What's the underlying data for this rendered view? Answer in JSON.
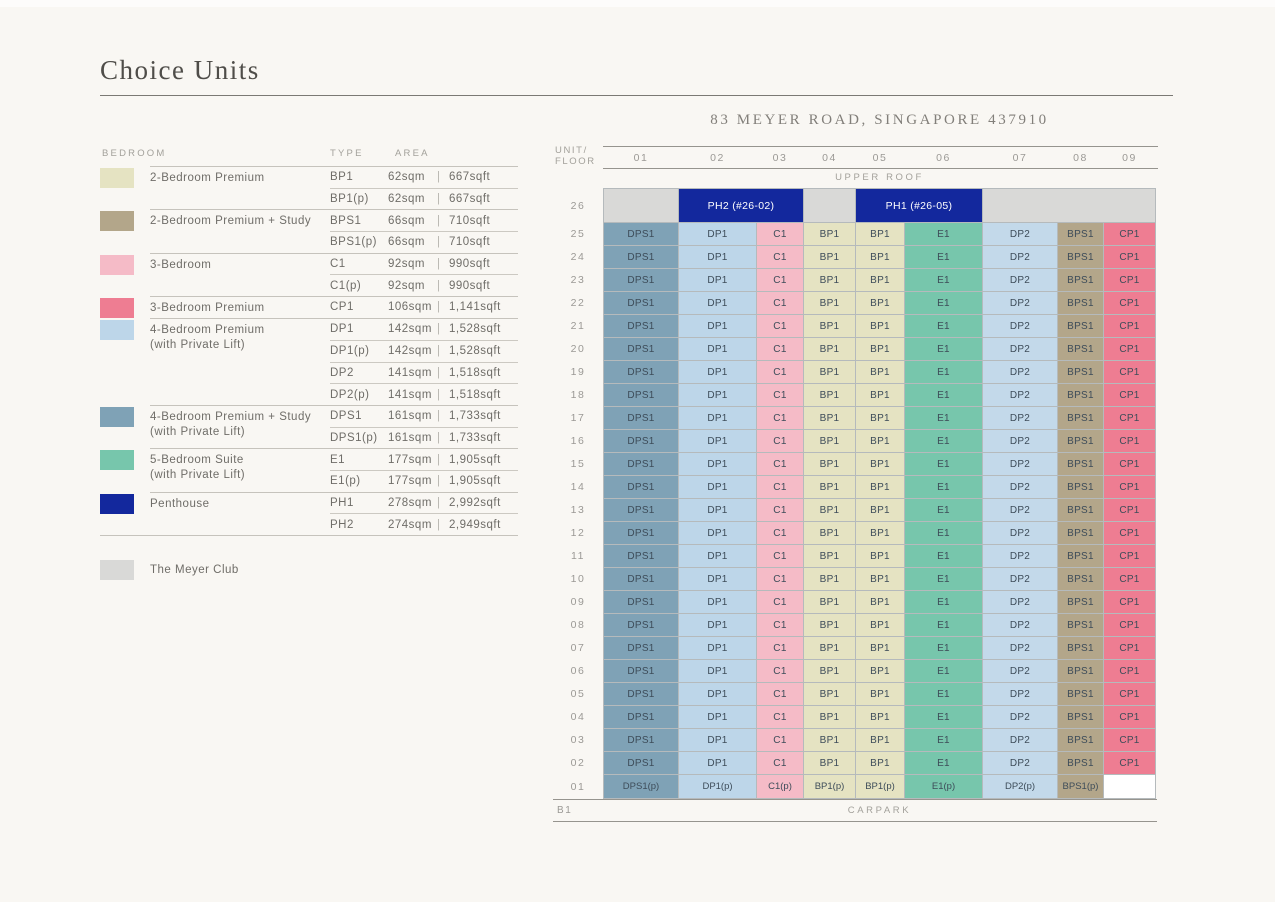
{
  "page": {
    "title": "Choice Units",
    "address": "83 MEYER ROAD, SINGAPORE 437910"
  },
  "legend": {
    "headers": {
      "bedroom": "BEDROOM",
      "type": "TYPE",
      "area": "AREA"
    },
    "divider": "|",
    "groups": [
      {
        "name_lines": [
          "2-Bedroom Premium"
        ],
        "color_key": "bp1",
        "types": [
          {
            "code": "BP1",
            "sqm": "62sqm",
            "sqft": "667sqft"
          },
          {
            "code": "BP1(p)",
            "sqm": "62sqm",
            "sqft": "667sqft"
          }
        ]
      },
      {
        "name_lines": [
          "2-Bedroom Premium + Study"
        ],
        "color_key": "bps1",
        "types": [
          {
            "code": "BPS1",
            "sqm": "66sqm",
            "sqft": "710sqft"
          },
          {
            "code": "BPS1(p)",
            "sqm": "66sqm",
            "sqft": "710sqft"
          }
        ]
      },
      {
        "name_lines": [
          "3-Bedroom"
        ],
        "color_key": "c1",
        "types": [
          {
            "code": "C1",
            "sqm": "92sqm",
            "sqft": "990sqft"
          },
          {
            "code": "C1(p)",
            "sqm": "92sqm",
            "sqft": "990sqft"
          }
        ]
      },
      {
        "name_lines": [
          "3-Bedroom Premium"
        ],
        "color_key": "cp1",
        "types": [
          {
            "code": "CP1",
            "sqm": "106sqm",
            "sqft": "1,141sqft"
          }
        ]
      },
      {
        "name_lines": [
          "4-Bedroom Premium",
          "(with Private Lift)"
        ],
        "color_key": "dp1",
        "types": [
          {
            "code": "DP1",
            "sqm": "142sqm",
            "sqft": "1,528sqft"
          },
          {
            "code": "DP1(p)",
            "sqm": "142sqm",
            "sqft": "1,528sqft"
          },
          {
            "code": "DP2",
            "sqm": "141sqm",
            "sqft": "1,518sqft"
          },
          {
            "code": "DP2(p)",
            "sqm": "141sqm",
            "sqft": "1,518sqft"
          }
        ]
      },
      {
        "name_lines": [
          "4-Bedroom Premium + Study",
          "(with Private Lift)"
        ],
        "color_key": "dps1",
        "types": [
          {
            "code": "DPS1",
            "sqm": "161sqm",
            "sqft": "1,733sqft"
          },
          {
            "code": "DPS1(p)",
            "sqm": "161sqm",
            "sqft": "1,733sqft"
          }
        ]
      },
      {
        "name_lines": [
          "5-Bedroom Suite",
          "(with Private Lift)"
        ],
        "color_key": "e1",
        "types": [
          {
            "code": "E1",
            "sqm": "177sqm",
            "sqft": "1,905sqft"
          },
          {
            "code": "E1(p)",
            "sqm": "177sqm",
            "sqft": "1,905sqft"
          }
        ]
      },
      {
        "name_lines": [
          "Penthouse"
        ],
        "color_key": "ph",
        "types": [
          {
            "code": "PH1",
            "sqm": "278sqm",
            "sqft": "2,992sqft"
          },
          {
            "code": "PH2",
            "sqm": "274sqm",
            "sqft": "2,949sqft"
          }
        ]
      }
    ],
    "club": {
      "name": "The Meyer Club",
      "color_key": "club"
    }
  },
  "grid": {
    "unit_floor_lines": [
      "UNIT/",
      "FLOOR"
    ],
    "columns": [
      "01",
      "02",
      "03",
      "04",
      "05",
      "06",
      "07",
      "08",
      "09"
    ],
    "upper_roof_label": "UPPER ROOF",
    "roof_floor": "26",
    "roof_cells": [
      {
        "label": "",
        "key": "club",
        "span": 1
      },
      {
        "label": "PH2 (#26-02)",
        "key": "ph",
        "span": 2
      },
      {
        "label": "",
        "key": "club",
        "span": 1
      },
      {
        "label": "PH1 (#26-05)",
        "key": "ph",
        "span": 2
      },
      {
        "label": "",
        "key": "club",
        "span": 3
      }
    ],
    "standard_floors": [
      "25",
      "24",
      "23",
      "22",
      "21",
      "20",
      "19",
      "18",
      "17",
      "16",
      "15",
      "14",
      "13",
      "12",
      "11",
      "10",
      "09",
      "08",
      "07",
      "06",
      "05",
      "04",
      "03",
      "02"
    ],
    "standard_cells": [
      {
        "label": "DPS1",
        "key": "dps1"
      },
      {
        "label": "DP1",
        "key": "dp1"
      },
      {
        "label": "C1",
        "key": "c1"
      },
      {
        "label": "BP1",
        "key": "bp1"
      },
      {
        "label": "BP1",
        "key": "bp1"
      },
      {
        "label": "E1",
        "key": "e1"
      },
      {
        "label": "DP2",
        "key": "dp2"
      },
      {
        "label": "BPS1",
        "key": "bps1"
      },
      {
        "label": "CP1",
        "key": "cp1"
      }
    ],
    "first_floor": "01",
    "first_floor_cells": [
      {
        "label": "DPS1(p)",
        "key": "dps1"
      },
      {
        "label": "DP1(p)",
        "key": "dp1"
      },
      {
        "label": "C1(p)",
        "key": "c1"
      },
      {
        "label": "BP1(p)",
        "key": "bp1"
      },
      {
        "label": "BP1(p)",
        "key": "bp1"
      },
      {
        "label": "E1(p)",
        "key": "e1"
      },
      {
        "label": "DP2(p)",
        "key": "dp2"
      },
      {
        "label": "BPS1(p)",
        "key": "bps1"
      },
      {
        "label": "",
        "key": "empty"
      }
    ],
    "basement_floor": "B1",
    "basement_label": "CARPARK"
  },
  "colors": {
    "bp1": "#e5e3c2",
    "bps1": "#b3a68a",
    "c1": "#f5bbc7",
    "cp1": "#ee7d92",
    "dp1": "#bdd6e9",
    "dp2": "#c3d9ea",
    "dps1": "#7fa2b6",
    "e1": "#77c6ac",
    "ph": "#13289d",
    "club": "#d9d9d7",
    "empty": "#ffffff"
  }
}
